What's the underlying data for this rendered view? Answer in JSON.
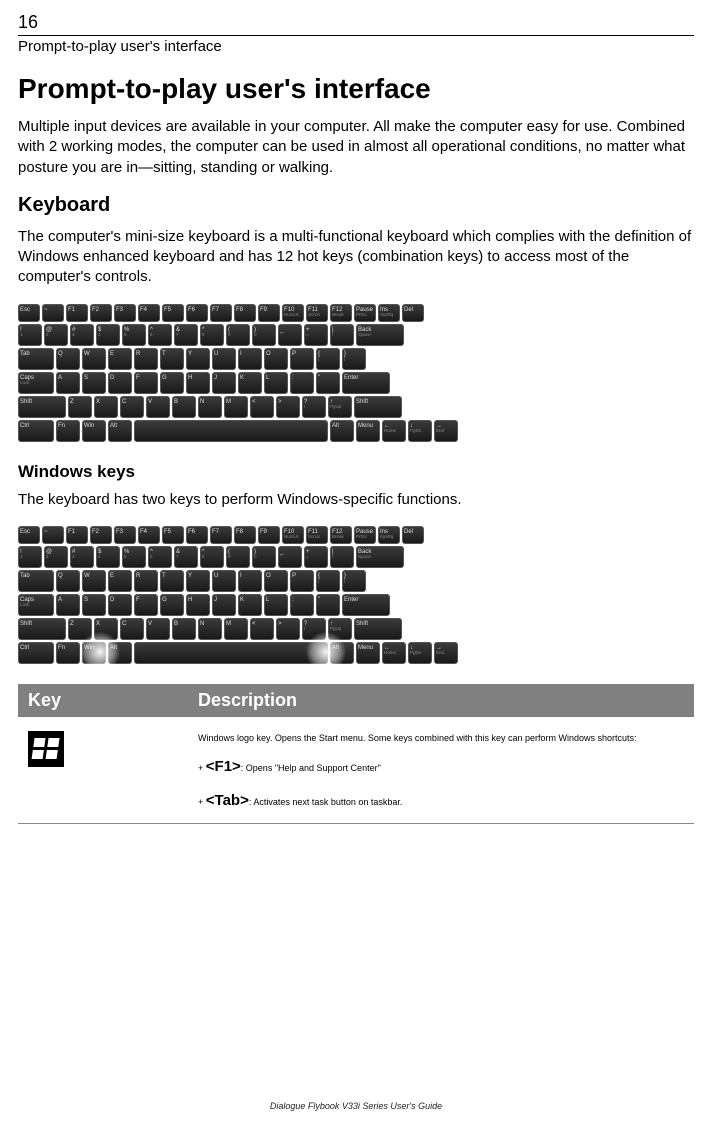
{
  "page": {
    "number": "16",
    "header_sub": "Prompt-to-play user's interface",
    "footer": "Dialogue Flybook V33i Series User's Guide"
  },
  "h1": "Prompt-to-play user's interface",
  "intro": "Multiple input devices are available in your computer. All make the computer easy for use. Combined with 2 working modes, the computer can be used in almost all operational conditions, no matter what posture you are in—sitting, standing or walking.",
  "keyboard_section": {
    "title": "Keyboard",
    "text": "The computer's mini-size keyboard is a multi-functional keyboard which complies with the definition of Windows enhanced keyboard and has 12 hot keys (combination keys) to access most of the computer's controls."
  },
  "windows_keys_section": {
    "title": "Windows keys",
    "text": "The keyboard has two keys to perform Windows-specific functions."
  },
  "keyboard_layout": {
    "row0": [
      "Esc",
      "~",
      "F1",
      "F2",
      "F3",
      "F4",
      "F5",
      "F6",
      "F7",
      "F8",
      "F9",
      "F10",
      "F11",
      "F12",
      "Pause",
      "Ins",
      "Del"
    ],
    "row0_sub": [
      "",
      "",
      "",
      "",
      "",
      "",
      "",
      "",
      "",
      "",
      "",
      "NumLK",
      "ScrLK",
      "Break",
      "PrtSc",
      "SysRq"
    ],
    "row1": [
      "!",
      "@",
      "#",
      "$",
      "%",
      "^",
      "&",
      "*",
      "(",
      ")",
      "_",
      "+",
      "|",
      "Back"
    ],
    "row1_sub": [
      "1",
      "2",
      "3",
      "4",
      "5",
      "6",
      "7",
      "8",
      "9",
      "0",
      "-",
      "=",
      "\\",
      "Space"
    ],
    "row2": [
      "Tab",
      "Q",
      "W",
      "E",
      "R",
      "T",
      "Y",
      "U",
      "I",
      "O",
      "P",
      "{",
      "}"
    ],
    "row2_sub": [
      "",
      "",
      "",
      "",
      "",
      "",
      "",
      "",
      "",
      "",
      "",
      "[",
      "]"
    ],
    "row3": [
      "Caps",
      "A",
      "S",
      "D",
      "F",
      "G",
      "H",
      "J",
      "K",
      "L",
      ":",
      "\"",
      "Enter"
    ],
    "row3_sub": [
      "Lock",
      "",
      "",
      "",
      "",
      "",
      "",
      "",
      "",
      "",
      ";",
      "'",
      ""
    ],
    "row4": [
      "Shift",
      "Z",
      "X",
      "C",
      "V",
      "B",
      "N",
      "M",
      "<",
      ">",
      "?",
      "↑",
      "Shift"
    ],
    "row4_sub": [
      "",
      "",
      "",
      "",
      "",
      "",
      "",
      "",
      ",",
      ".",
      "/",
      "PgUp",
      ""
    ],
    "row5": [
      "Ctrl",
      "Fn",
      "Win",
      "Alt",
      "",
      "Alt",
      "Menu",
      "←",
      "↓",
      "→"
    ],
    "row5_sub": [
      "",
      "",
      "",
      "",
      "",
      "",
      "",
      "Home",
      "PgDn",
      "End"
    ]
  },
  "table": {
    "header_key": "Key",
    "header_desc": "Description",
    "row1": {
      "icon_name": "windows-logo-icon",
      "line1": "Windows logo key. Opens the Start menu. Some keys combined with this key can perform Windows shortcuts:",
      "shortcut1_prefix": "+ ",
      "shortcut1_key": "<F1>",
      "shortcut1_suffix": ": Opens \"Help and Support Center\"",
      "shortcut2_prefix": "+ ",
      "shortcut2_key": "<Tab>",
      "shortcut2_suffix": ": Activates next task button on taskbar."
    }
  },
  "colors": {
    "table_header_bg": "#808080",
    "table_header_fg": "#ffffff",
    "rule": "#000000",
    "row_rule": "#888888"
  }
}
